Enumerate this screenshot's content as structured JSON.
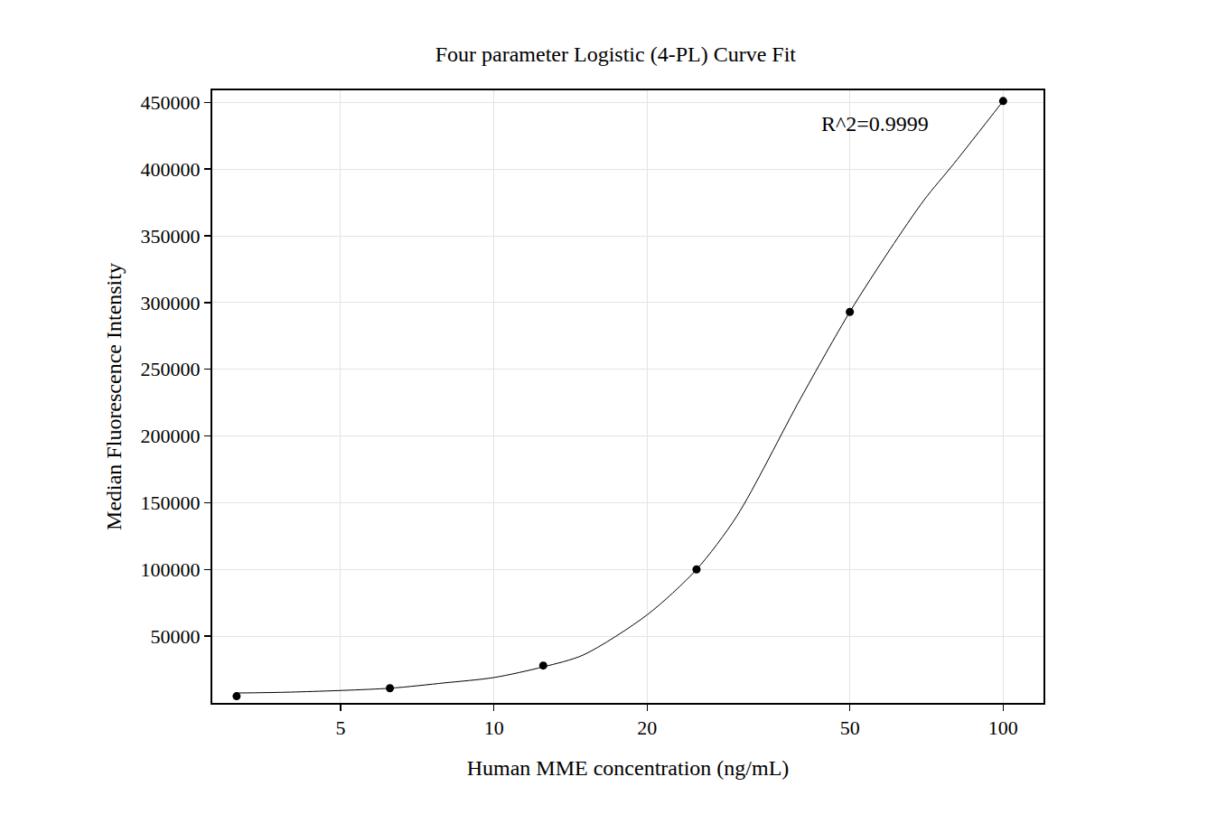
{
  "chart_data": {
    "type": "scatter",
    "title": "Four parameter Logistic (4-PL) Curve Fit",
    "x_label": "Human MME concentration (ng/mL)",
    "y_label": "Median Fluorescence Intensity",
    "annotations": [
      "R^2=0.9999"
    ],
    "log": "x",
    "grid": true,
    "xlim": [
      2.8,
      120
    ],
    "ylim": [
      0,
      459000
    ],
    "xticks": [
      5,
      10,
      20,
      50,
      100
    ],
    "yticks": [
      50000,
      100000,
      150000,
      200000,
      250000,
      300000,
      350000,
      400000,
      450000
    ],
    "series": [
      {
        "type": "scatter",
        "marker": "circle",
        "color": "#000000",
        "x": [
          3.125,
          6.25,
          12.5,
          25,
          50,
          100
        ],
        "values": [
          5000,
          11000,
          28000,
          100000,
          293000,
          451000
        ]
      },
      {
        "type": "line",
        "line_style": "solid",
        "color": "#000000",
        "x": [
          3.125,
          4,
          6.25,
          8,
          10,
          12.5,
          15,
          20,
          25,
          30,
          40,
          50,
          60,
          70,
          80,
          100
        ],
        "values": [
          7400,
          8100,
          11000,
          15000,
          19000,
          27000,
          36000,
          66000,
          100000,
          140000,
          228000,
          293000,
          340000,
          377000,
          404000,
          451000
        ]
      }
    ]
  }
}
